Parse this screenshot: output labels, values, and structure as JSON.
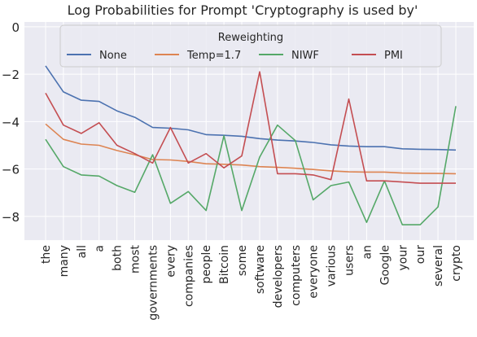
{
  "chart_data": {
    "type": "line",
    "title": "Log Probabilities for Prompt 'Cryptography is used by'",
    "xlabel": "",
    "ylabel": "",
    "ylim": [
      -9.0,
      0.2
    ],
    "yticks": [
      0,
      -2,
      -4,
      -6,
      -8
    ],
    "grid": true,
    "legend": {
      "title": "Reweighting",
      "placement": "top"
    },
    "categories": [
      "the",
      "many",
      "all",
      "a",
      "both",
      "most",
      "governments",
      "every",
      "companies",
      "people",
      "Bitcoin",
      "some",
      "software",
      "developers",
      "computers",
      "everyone",
      "various",
      "users",
      "an",
      "Google",
      "your",
      "our",
      "several",
      "crypto"
    ],
    "series": [
      {
        "name": "None",
        "color": "#4c72b0",
        "values": [
          -1.65,
          -2.75,
          -3.1,
          -3.15,
          -3.55,
          -3.82,
          -4.25,
          -4.28,
          -4.35,
          -4.55,
          -4.58,
          -4.62,
          -4.72,
          -4.78,
          -4.82,
          -4.88,
          -4.98,
          -5.03,
          -5.06,
          -5.06,
          -5.15,
          -5.17,
          -5.18,
          -5.2
        ]
      },
      {
        "name": "Temp=1.7",
        "color": "#dd8452",
        "values": [
          -4.1,
          -4.75,
          -4.95,
          -5.0,
          -5.22,
          -5.4,
          -5.6,
          -5.62,
          -5.68,
          -5.78,
          -5.8,
          -5.83,
          -5.9,
          -5.93,
          -5.97,
          -6.02,
          -6.08,
          -6.12,
          -6.13,
          -6.13,
          -6.17,
          -6.18,
          -6.19,
          -6.2
        ]
      },
      {
        "name": "NIWF",
        "color": "#55a868",
        "values": [
          -4.75,
          -5.9,
          -6.25,
          -6.3,
          -6.7,
          -6.98,
          -5.4,
          -7.45,
          -6.95,
          -7.75,
          -4.6,
          -7.75,
          -5.5,
          -4.15,
          -4.8,
          -7.3,
          -6.7,
          -6.55,
          -8.25,
          -6.5,
          -8.35,
          -8.35,
          -7.6,
          -3.35
        ]
      },
      {
        "name": "PMI",
        "color": "#c44e52",
        "values": [
          -2.8,
          -4.15,
          -4.5,
          -4.05,
          -5.0,
          -5.35,
          -5.75,
          -4.25,
          -5.75,
          -5.35,
          -5.95,
          -5.45,
          -1.9,
          -6.2,
          -6.2,
          -6.25,
          -6.45,
          -3.05,
          -6.5,
          -6.5,
          -6.55,
          -6.6,
          -6.6,
          -6.6
        ]
      }
    ]
  }
}
